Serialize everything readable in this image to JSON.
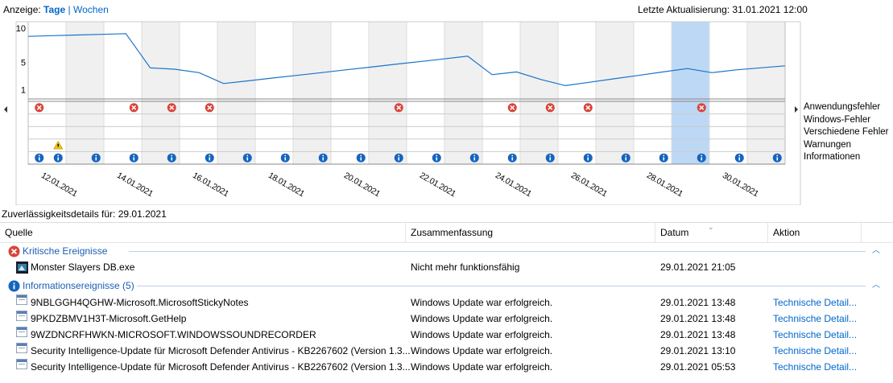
{
  "header": {
    "view_label": "Anzeige:",
    "view_days": "Tage",
    "view_sep": "|",
    "view_weeks": "Wochen",
    "last_update": "Letzte Aktualisierung: 31.01.2021 12:00"
  },
  "chart": {
    "y_ticks": [
      "10",
      "5",
      "1"
    ],
    "row_labels": [
      "Anwendungsfehler",
      "Windows-Fehler",
      "Verschiedene Fehler",
      "Warnungen",
      "Informationen"
    ],
    "date_labels": [
      "12.01.2021",
      "14.01.2021",
      "16.01.2021",
      "18.01.2021",
      "20.01.2021",
      "22.01.2021",
      "24.01.2021",
      "26.01.2021",
      "28.01.2021",
      "30.01.2021"
    ],
    "selected_day_index": 17,
    "stability_index": [
      8.8,
      8.9,
      9.0,
      9.1,
      9.2,
      4.2,
      4.0,
      3.5,
      1.9,
      2.3,
      2.7,
      3.1,
      3.5,
      3.9,
      4.3,
      4.7,
      5.1,
      5.5,
      5.9,
      3.2,
      3.6,
      2.5,
      1.6,
      2.1,
      2.6,
      3.1,
      3.6,
      4.1,
      3.5,
      3.9,
      4.2,
      4.5
    ],
    "app_errors_days": [
      0,
      5,
      7,
      9,
      19,
      25,
      27,
      29,
      35
    ],
    "warning_days": [
      1
    ],
    "info_days": [
      0,
      1,
      3,
      5,
      7,
      9,
      11,
      13,
      15,
      17,
      19,
      21,
      23,
      25,
      27,
      29,
      31,
      33,
      35,
      37,
      39
    ],
    "colors": {
      "line": "#1a73c8",
      "selection": "#bcd8f5",
      "error": "#d9443b",
      "info": "#1565c0",
      "warning": "#f2c500"
    }
  },
  "details": {
    "title": "Zuverlässigkeitsdetails für: 29.01.2021",
    "columns": {
      "source": "Quelle",
      "summary": "Zusammenfassung",
      "date": "Datum",
      "action": "Aktion"
    },
    "critical_group": "Kritische Ereignisse",
    "critical_rows": [
      {
        "source": "Monster Slayers DB.exe",
        "summary": "Nicht mehr funktionsfähig",
        "date": "29.01.2021 21:05",
        "action": ""
      }
    ],
    "info_group": "Informationsereignisse (5)",
    "info_rows": [
      {
        "source": "9NBLGGH4QGHW-Microsoft.MicrosoftStickyNotes",
        "summary": "Windows Update war erfolgreich.",
        "date": "29.01.2021 13:48",
        "action": "Technische Detail..."
      },
      {
        "source": "9PKDZBMV1H3T-Microsoft.GetHelp",
        "summary": "Windows Update war erfolgreich.",
        "date": "29.01.2021 13:48",
        "action": "Technische Detail..."
      },
      {
        "source": "9WZDNCRFHWKN-MICROSOFT.WINDOWSSOUNDRECORDER",
        "summary": "Windows Update war erfolgreich.",
        "date": "29.01.2021 13:48",
        "action": "Technische Detail..."
      },
      {
        "source": "Security Intelligence-Update für Microsoft Defender Antivirus - KB2267602 (Version 1.3...",
        "summary": "Windows Update war erfolgreich.",
        "date": "29.01.2021 13:10",
        "action": "Technische Detail..."
      },
      {
        "source": "Security Intelligence-Update für Microsoft Defender Antivirus - KB2267602 (Version 1.3...",
        "summary": "Windows Update war erfolgreich.",
        "date": "29.01.2021 05:53",
        "action": "Technische Detail..."
      }
    ]
  }
}
